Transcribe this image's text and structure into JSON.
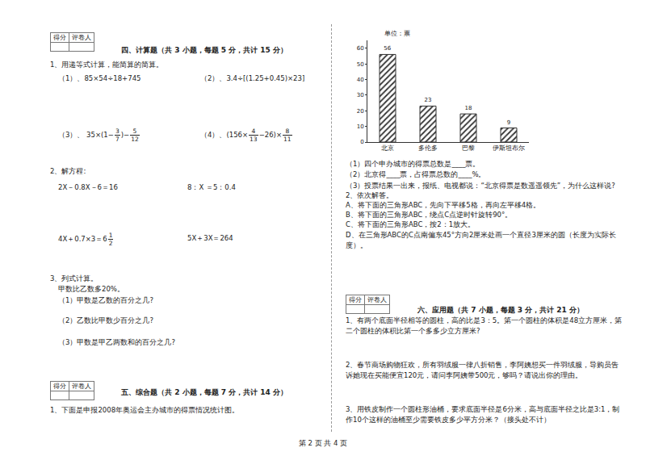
{
  "footer": "第 2 页 共 4 页",
  "score_box": [
    "得分",
    "评卷人"
  ],
  "section4": {
    "heading": "四、计算题（共 3 小题，每题 5 分，共计 15 分）",
    "q1": {
      "text": "1、用递等式计算，能简算的简算。",
      "items": [
        [
          "（1）、85×54÷18+745"
        ],
        [
          "（2）、3.4÷[(1.25+0.45)×23]"
        ],
        [
          "（3）、 35×(1−",
          {
            "num": "3",
            "den": "7"
          },
          ")−",
          {
            "num": "5",
            "den": "12"
          }
        ],
        [
          "（4）、(156×",
          {
            "num": "4",
            "den": "13"
          },
          "−26)×",
          {
            "num": "8",
            "den": "11"
          }
        ]
      ]
    },
    "q2": {
      "text": "2、解方程:",
      "items": [
        [
          "2X－0.8X－6＝16"
        ],
        [
          "8：X ＝5：0.4"
        ],
        [
          "4X＋0.7×3＝6",
          {
            "num": "1",
            "den": "2"
          }
        ],
        [
          "5X＋3X＝264"
        ]
      ]
    },
    "q3": {
      "text": "3、列式计算。",
      "premise": "甲数比乙数多20%。",
      "items": [
        "（1）甲数是乙数的百分之几?",
        "（2）乙数比甲数少百分之几?",
        "（3）甲数是甲乙两数和的百分之几?"
      ]
    }
  },
  "section5": {
    "heading": "五、综合题（共 2 小题，每题 7 分，共计 14 分）",
    "q1": "1、下面是申报2008年奥运会主办城市的得票情况统计图。",
    "chart_questions": [
      "（1）四个申办城市的得票总数是____票。",
      "（2）北京得____票，占得票总数的____%。",
      "（3）投票结果一出来，报纸、电视都说：“北京得票是数遥遥领先”，为什么这样说?"
    ],
    "q2": {
      "text": "2、依次解答。",
      "items": [
        "A、将下面的三角形ABC，先向下平移5格，再向左平移4格。",
        "B、将下面的三角形ABC，绕点C点逆时针旋转90°。",
        "C、将下面的三角形ABC，按2：1放大。",
        "D、在三角形ABC的C点南偏东45°方向2厘米处画一个直径3厘米的圆（长度为实际长度）。"
      ]
    }
  },
  "section6": {
    "heading": "六、应用题（共 7 小题，每题 3 分，共计 21 分）",
    "items": [
      "1、有两个底面半径相等的圆柱，高的比是3：5。第一个圆柱的体积是48立方厘米，第二个圆柱的体积比第一个多多少立方厘米?",
      "2、春节商场购物狂欢，所有羽绒服一律八折销售，李阿姨想买一件羽绒服，导购员告诉她现在买能便宜120元，请问李阿姨带500元，够吗？请说出你的理由。",
      "3、用铁皮制作一个圆柱形油桶，要求底面半径是6分米，高与底面半径之比是3:1，制作10个这样的油桶至少需要铁皮多少平方分米？（接头处不计）"
    ]
  },
  "chart_data": {
    "type": "bar",
    "title": "单位：票",
    "categories": [
      "北京",
      "多伦多",
      "巴黎",
      "伊斯坦布尔"
    ],
    "values": [
      56,
      23,
      18,
      9
    ],
    "color": "#333333",
    "ylim": [
      0,
      65
    ],
    "yticks": [
      0,
      10,
      20,
      30,
      40,
      50,
      60
    ],
    "grid": false,
    "data_labels": true
  }
}
